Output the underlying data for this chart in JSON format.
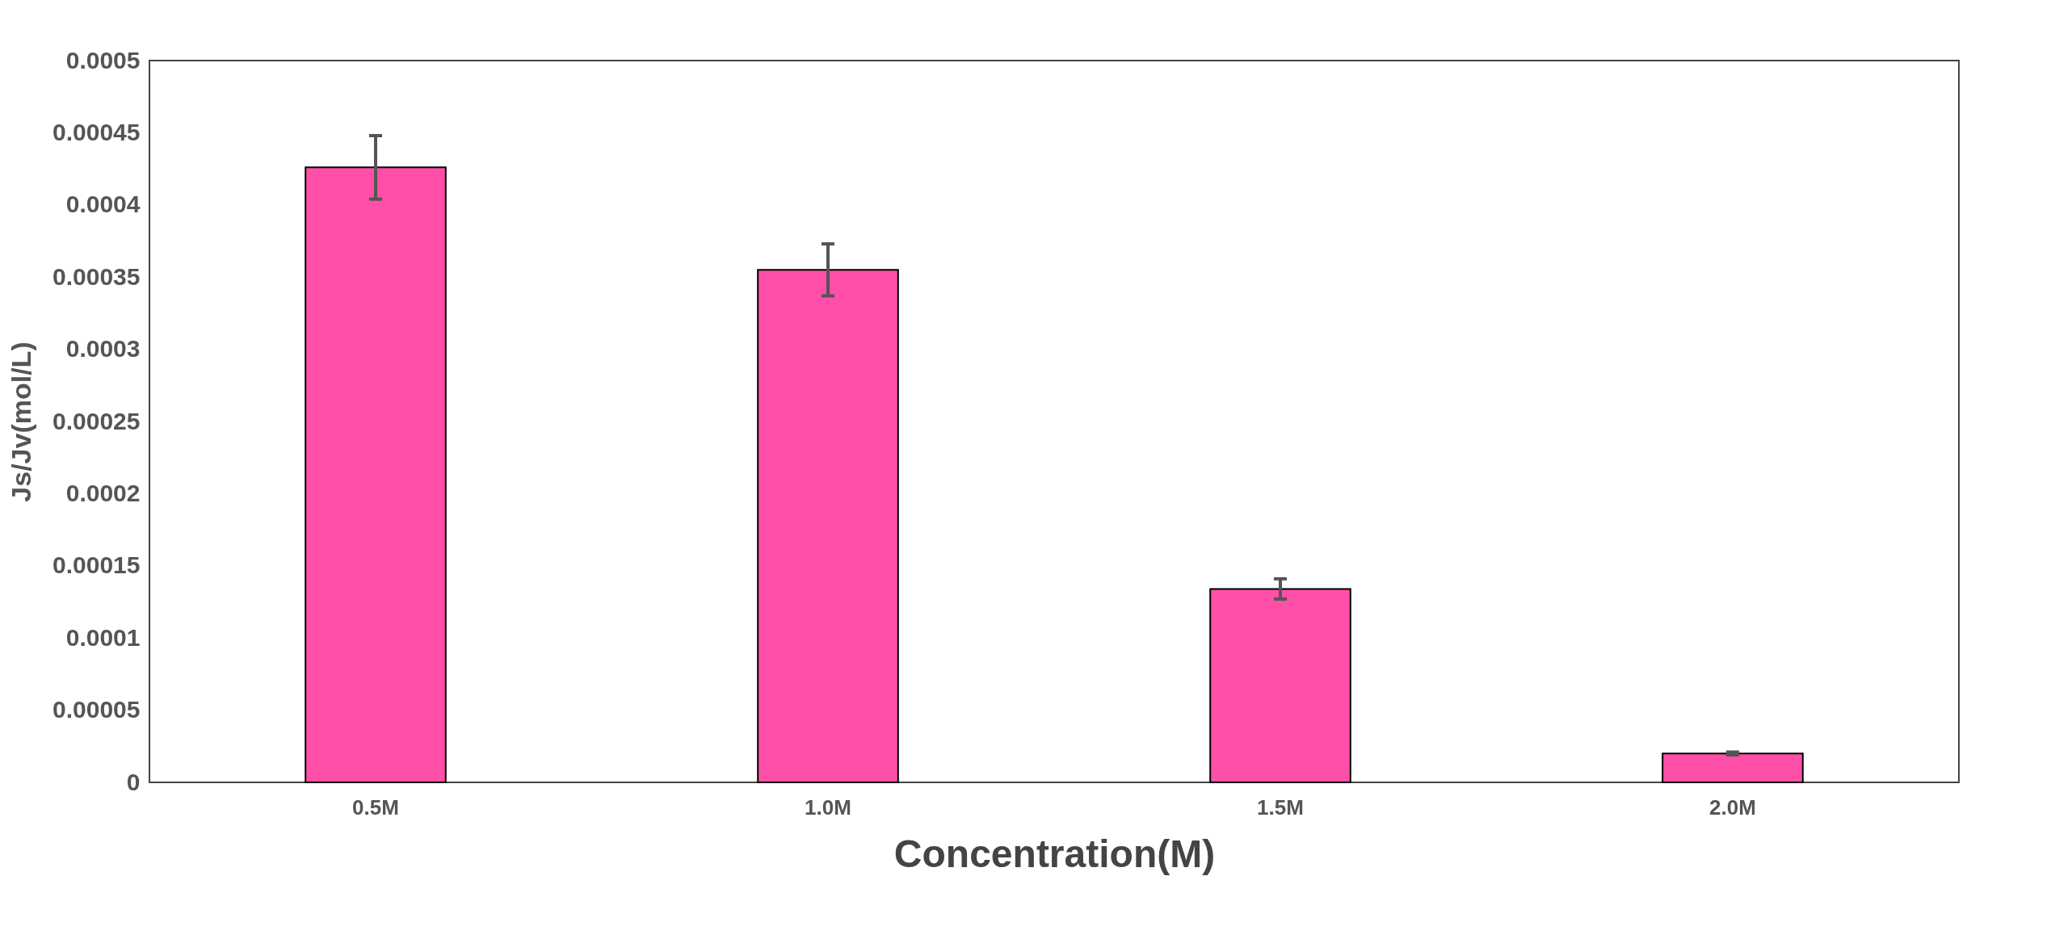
{
  "chart_data": {
    "type": "bar",
    "xlabel": "Concentration(M)",
    "ylabel": "Js/Jv(mol/L)",
    "categories": [
      "0.5M",
      "1.0M",
      "1.5M",
      "2.0M"
    ],
    "series": [
      {
        "color": "#ff4fa8",
        "values": [
          0.000426,
          0.000355,
          0.000134,
          2e-05
        ],
        "errors": [
          2.2e-05,
          1.8e-05,
          7e-06,
          1e-06
        ]
      }
    ],
    "ylim": [
      0,
      0.0005
    ],
    "yticks": [
      0,
      {
        "value": 5e-05,
        "label": "0.00005"
      },
      0.0001,
      0.00015,
      0.0002,
      0.00025,
      0.0003,
      0.00035,
      0.0004,
      0.00045,
      0.0005
    ],
    "grid": false,
    "legend": false
  }
}
